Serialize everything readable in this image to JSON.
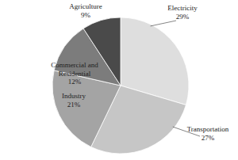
{
  "chart_data": {
    "type": "pie",
    "categories": [
      "Electricity",
      "Transportation",
      "Industry",
      "Commercial and Residential",
      "Agriculture"
    ],
    "values": [
      29,
      27,
      21,
      12,
      9
    ],
    "value_labels": [
      "29%",
      "27%",
      "21%",
      "12%",
      "9%"
    ],
    "colors": [
      "#dedede",
      "#c6c6c6",
      "#a4a4a4",
      "#7c7c7c",
      "#4a4a4a"
    ],
    "data_labels": true
  }
}
